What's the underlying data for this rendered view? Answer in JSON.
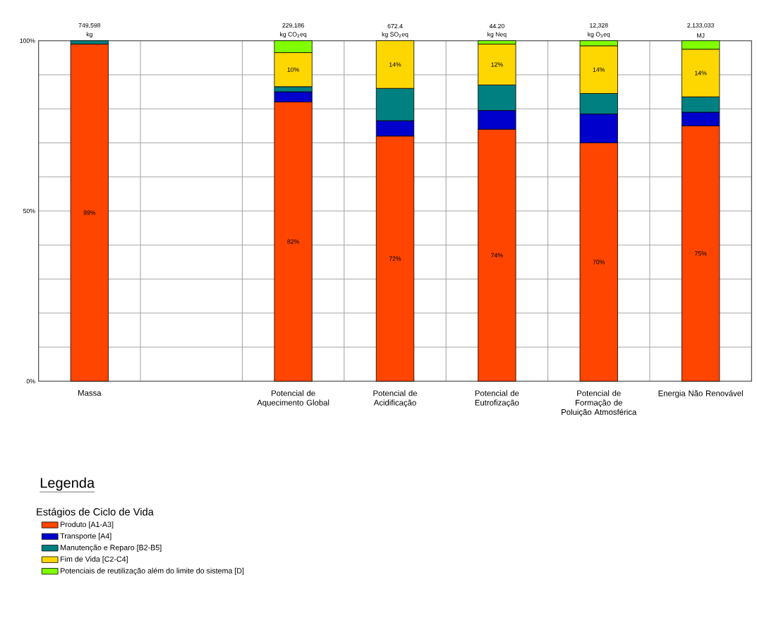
{
  "chart_data": {
    "type": "bar",
    "stacked": true,
    "categories": [
      "Massa",
      null,
      "Potencial de Aquecimento Global",
      "Potencial de Acidificação",
      "Potencial de Eutrofização",
      "Potencial de Formação de Poluição Atmosférica",
      "Energia Não Renovável"
    ],
    "series": [
      {
        "name": "Produto [A1-A3]",
        "color": "#ff4500",
        "values": [
          99,
          null,
          82,
          72,
          74,
          70,
          75
        ],
        "value_labels": [
          "99%",
          null,
          "82%",
          "72%",
          "74%",
          "70%",
          "75%"
        ]
      },
      {
        "name": "Transporte [A4]",
        "color": "#0000cc",
        "values": [
          null,
          null,
          3,
          4.5,
          5.5,
          8.5,
          4
        ]
      },
      {
        "name": "Manutenção e Reparo [B2-B5]",
        "color": "#008080",
        "values": [
          1,
          null,
          1.5,
          9.5,
          7.5,
          6,
          4.5
        ]
      },
      {
        "name": "Fim de Vida [C2-C4]",
        "color": "#ffd700",
        "values": [
          null,
          null,
          10,
          14,
          12,
          14,
          14
        ],
        "value_labels": [
          null,
          null,
          "10%",
          "14%",
          "12%",
          "14%",
          "14%"
        ]
      },
      {
        "name": "Potenciais de reutilização além do limite do sistema [D]",
        "color": "#80ff00",
        "values": [
          null,
          null,
          3.5,
          null,
          1,
          1.5,
          2.5
        ]
      }
    ],
    "ylim": [
      0,
      100
    ],
    "yticks": [
      {
        "value": 0,
        "label": "0%"
      },
      {
        "value": 10,
        "label": null
      },
      {
        "value": 20,
        "label": null
      },
      {
        "value": 30,
        "label": null
      },
      {
        "value": 40,
        "label": null
      },
      {
        "value": 50,
        "label": "50%"
      },
      {
        "value": 60,
        "label": null
      },
      {
        "value": 70,
        "label": null
      },
      {
        "value": 80,
        "label": null
      },
      {
        "value": 90,
        "label": null
      },
      {
        "value": 100,
        "label": "100%"
      }
    ],
    "annotations": [
      "Legenda",
      {
        "text": "749,598",
        "x": "Massa",
        "y": 100
      },
      {
        "text": "229,186",
        "x": "Potencial de Aquecimento Global",
        "y": 100
      },
      {
        "text": "672.4",
        "x": "Potencial de Acidificação",
        "y": 100
      },
      {
        "text": "44.20",
        "x": "Potencial de Eutrofização",
        "y": 100
      },
      {
        "text": "12,328",
        "x": "Potencial de Formação de Poluição Atmosférica",
        "y": 100
      },
      {
        "text": "2,133,033",
        "x": "Energia Não Renovável",
        "y": 100
      },
      {
        "text": "kg",
        "x": "Massa",
        "y": 100
      },
      {
        "text": "kg CO$_{2}$eq",
        "x": "Potencial de Aquecimento Global",
        "y": 100
      },
      {
        "text": "kg SO$_{2}$eq",
        "x": "Potencial de Acidificação",
        "y": 100
      },
      {
        "text": "kg Neq",
        "x": "Potencial de Eutrofização",
        "y": 100
      },
      {
        "text": "kg O$_{3}$eq",
        "x": "Potencial de Formação de Poluição Atmosférica",
        "y": 100
      },
      {
        "text": "MJ",
        "x": "Energia Não Renovável",
        "y": 100
      }
    ],
    "legend_title": "Estágios de Ciclo de Vida",
    "legend": "bottom left",
    "grid": true
  }
}
